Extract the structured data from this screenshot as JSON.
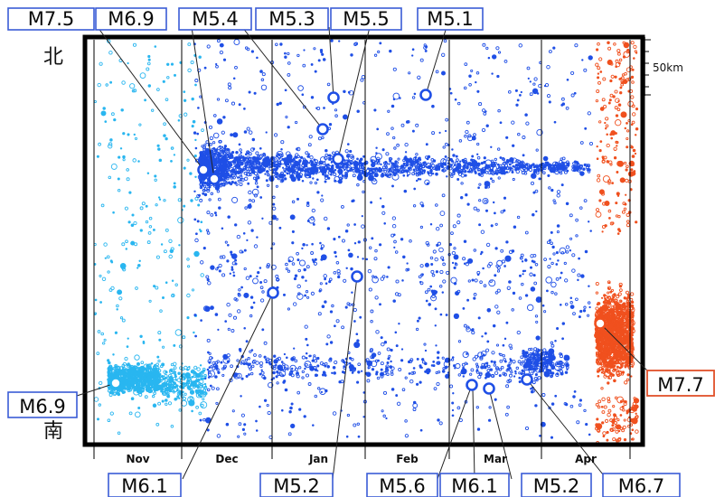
{
  "chart_data": {
    "type": "scatter",
    "x_axis": {
      "tick_labels": [
        "Nov",
        "Dec",
        "Jan",
        "Feb",
        "Mar",
        "Apr"
      ]
    },
    "y_axis": {
      "north_label": "北",
      "south_label": "南"
    },
    "scale_label": "50km",
    "grid": "vertical month dividers",
    "colors": {
      "nov": "#29b6f0",
      "dec_mar": "#1f4fe6",
      "apr": "#f0501e",
      "box_blue": "#3a5bd6",
      "box_red": "#e2502a"
    },
    "annotations": [
      {
        "label": "M7.5"
      },
      {
        "label": "M6.9"
      },
      {
        "label": "M5.4"
      },
      {
        "label": "M5.3"
      },
      {
        "label": "M5.5"
      },
      {
        "label": "M5.1"
      },
      {
        "label": "M6.9"
      },
      {
        "label": "M7.7"
      },
      {
        "label": "M6.1"
      },
      {
        "label": "M5.2"
      },
      {
        "label": "M5.6"
      },
      {
        "label": "M6.1"
      },
      {
        "label": "M5.2"
      },
      {
        "label": "M6.7"
      }
    ]
  }
}
